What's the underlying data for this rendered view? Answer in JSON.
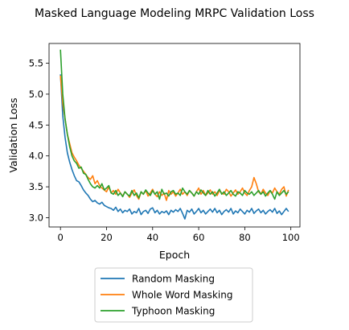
{
  "chart_data": {
    "type": "line",
    "title": "Masked Language Modeling MRPC Validation Loss",
    "xlabel": "Epoch",
    "ylabel": "Validation Loss",
    "xlim": [
      -4.95,
      103.95
    ],
    "ylim": [
      2.85,
      5.82
    ],
    "xticks": [
      0,
      20,
      40,
      60,
      80,
      100
    ],
    "yticks": [
      3.0,
      3.5,
      4.0,
      4.5,
      5.0,
      5.5
    ],
    "xtick_labels": [
      "0",
      "20",
      "40",
      "60",
      "80",
      "100"
    ],
    "ytick_labels": [
      "3.0",
      "3.5",
      "4.0",
      "4.5",
      "5.0",
      "5.5"
    ],
    "grid": false,
    "legend_placement": "below plot",
    "x": [
      0,
      1,
      2,
      3,
      4,
      5,
      6,
      7,
      8,
      9,
      10,
      11,
      12,
      13,
      14,
      15,
      16,
      17,
      18,
      19,
      20,
      21,
      22,
      23,
      24,
      25,
      26,
      27,
      28,
      29,
      30,
      31,
      32,
      33,
      34,
      35,
      36,
      37,
      38,
      39,
      40,
      41,
      42,
      43,
      44,
      45,
      46,
      47,
      48,
      49,
      50,
      51,
      52,
      53,
      54,
      55,
      56,
      57,
      58,
      59,
      60,
      61,
      62,
      63,
      64,
      65,
      66,
      67,
      68,
      69,
      70,
      71,
      72,
      73,
      74,
      75,
      76,
      77,
      78,
      79,
      80,
      81,
      82,
      83,
      84,
      85,
      86,
      87,
      88,
      89,
      90,
      91,
      92,
      93,
      94,
      95,
      96,
      97,
      98,
      99
    ],
    "series": [
      {
        "name": "Random Masking",
        "color": "#1f77b4",
        "values": [
          5.32,
          4.65,
          4.3,
          4.05,
          3.9,
          3.78,
          3.68,
          3.6,
          3.58,
          3.52,
          3.45,
          3.4,
          3.36,
          3.3,
          3.26,
          3.28,
          3.24,
          3.22,
          3.25,
          3.2,
          3.18,
          3.16,
          3.15,
          3.12,
          3.17,
          3.1,
          3.14,
          3.08,
          3.12,
          3.1,
          3.14,
          3.06,
          3.1,
          3.08,
          3.15,
          3.05,
          3.1,
          3.12,
          3.07,
          3.14,
          3.16,
          3.08,
          3.12,
          3.06,
          3.1,
          3.08,
          3.11,
          3.05,
          3.12,
          3.09,
          3.13,
          3.1,
          3.15,
          3.07,
          2.98,
          3.12,
          3.09,
          3.14,
          3.06,
          3.1,
          3.15,
          3.08,
          3.12,
          3.06,
          3.1,
          3.14,
          3.09,
          3.15,
          3.08,
          3.12,
          3.05,
          3.1,
          3.13,
          3.09,
          3.15,
          3.06,
          3.11,
          3.08,
          3.14,
          3.1,
          3.06,
          3.12,
          3.09,
          3.15,
          3.07,
          3.11,
          3.14,
          3.08,
          3.12,
          3.06,
          3.1,
          3.13,
          3.09,
          3.15,
          3.07,
          3.11,
          3.05,
          3.1,
          3.15,
          3.1
        ]
      },
      {
        "name": "Whole Word Masking",
        "color": "#ff7f0e",
        "values": [
          5.3,
          4.85,
          4.6,
          4.35,
          4.2,
          4.05,
          3.98,
          3.92,
          3.85,
          3.8,
          3.75,
          3.7,
          3.65,
          3.62,
          3.68,
          3.55,
          3.6,
          3.52,
          3.48,
          3.45,
          3.42,
          3.5,
          3.4,
          3.44,
          3.38,
          3.46,
          3.4,
          3.35,
          3.42,
          3.38,
          3.33,
          3.4,
          3.45,
          3.36,
          3.3,
          3.42,
          3.38,
          3.44,
          3.35,
          3.4,
          3.46,
          3.38,
          3.34,
          3.42,
          3.36,
          3.4,
          3.28,
          3.44,
          3.38,
          3.42,
          3.35,
          3.4,
          3.46,
          3.38,
          3.42,
          3.36,
          3.44,
          3.4,
          3.35,
          3.42,
          3.48,
          3.38,
          3.44,
          3.36,
          3.4,
          3.45,
          3.38,
          3.42,
          3.36,
          3.44,
          3.4,
          3.38,
          3.46,
          3.42,
          3.35,
          3.4,
          3.45,
          3.38,
          3.42,
          3.48,
          3.4,
          3.36,
          3.44,
          3.5,
          3.65,
          3.55,
          3.42,
          3.38,
          3.46,
          3.4,
          3.36,
          3.44,
          3.4,
          3.48,
          3.42,
          3.38,
          3.46,
          3.5,
          3.35,
          3.45
        ]
      },
      {
        "name": "Typhoon Masking",
        "color": "#2ca02c",
        "values": [
          5.72,
          5.0,
          4.6,
          4.35,
          4.15,
          4.0,
          3.92,
          3.88,
          3.8,
          3.82,
          3.72,
          3.7,
          3.62,
          3.55,
          3.5,
          3.48,
          3.52,
          3.48,
          3.55,
          3.45,
          3.48,
          3.52,
          3.4,
          3.38,
          3.44,
          3.36,
          3.4,
          3.34,
          3.42,
          3.38,
          3.35,
          3.44,
          3.36,
          3.4,
          3.32,
          3.42,
          3.38,
          3.45,
          3.4,
          3.36,
          3.44,
          3.38,
          3.42,
          3.3,
          3.46,
          3.38,
          3.4,
          3.35,
          3.42,
          3.44,
          3.38,
          3.4,
          3.36,
          3.48,
          3.42,
          3.38,
          3.44,
          3.4,
          3.35,
          3.42,
          3.38,
          3.45,
          3.4,
          3.36,
          3.44,
          3.38,
          3.42,
          3.35,
          3.4,
          3.46,
          3.38,
          3.42,
          3.36,
          3.4,
          3.44,
          3.38,
          3.35,
          3.42,
          3.4,
          3.36,
          3.44,
          3.4,
          3.38,
          3.42,
          3.36,
          3.4,
          3.44,
          3.38,
          3.42,
          3.35,
          3.4,
          3.44,
          3.38,
          3.3,
          3.42,
          3.36,
          3.4,
          3.44,
          3.38,
          3.42
        ]
      }
    ]
  }
}
